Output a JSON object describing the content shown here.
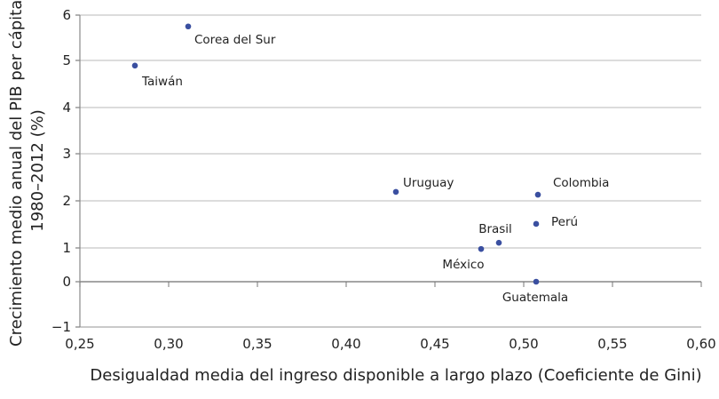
{
  "chart_data": {
    "type": "scatter",
    "title": "",
    "xlabel": "Desigualdad media del ingreso disponible a largo plazo (Coeficiente de Gini)",
    "ylabel": [
      "Crecimiento medio anual del PIB per cápita,",
      "1980–2012 (%)"
    ],
    "xlim": [
      0.25,
      0.6
    ],
    "ylim": [
      -1,
      6
    ],
    "grid": "horizontal",
    "x_ticks": [
      "0,25",
      "0,30",
      "0,35",
      "0,40",
      "0,45",
      "0,50",
      "0,55",
      "0,60"
    ],
    "y_ticks": [
      "−1",
      "0",
      "1",
      "2",
      "3",
      "4",
      "5",
      "6"
    ],
    "marker_color": "#3a4fa0",
    "points": [
      {
        "label": "Corea del Sur",
        "x": 0.311,
        "y": 5.75
      },
      {
        "label": "Taiwán",
        "x": 0.281,
        "y": 4.89
      },
      {
        "label": "Uruguay",
        "x": 0.428,
        "y": 2.19
      },
      {
        "label": "Colombia",
        "x": 0.508,
        "y": 2.13
      },
      {
        "label": "Perú",
        "x": 0.507,
        "y": 1.51
      },
      {
        "label": "Brasil",
        "x": 0.486,
        "y": 1.11
      },
      {
        "label": "México",
        "x": 0.476,
        "y": 0.97
      },
      {
        "label": "Guatemala",
        "x": 0.507,
        "y": 0.0
      }
    ]
  }
}
